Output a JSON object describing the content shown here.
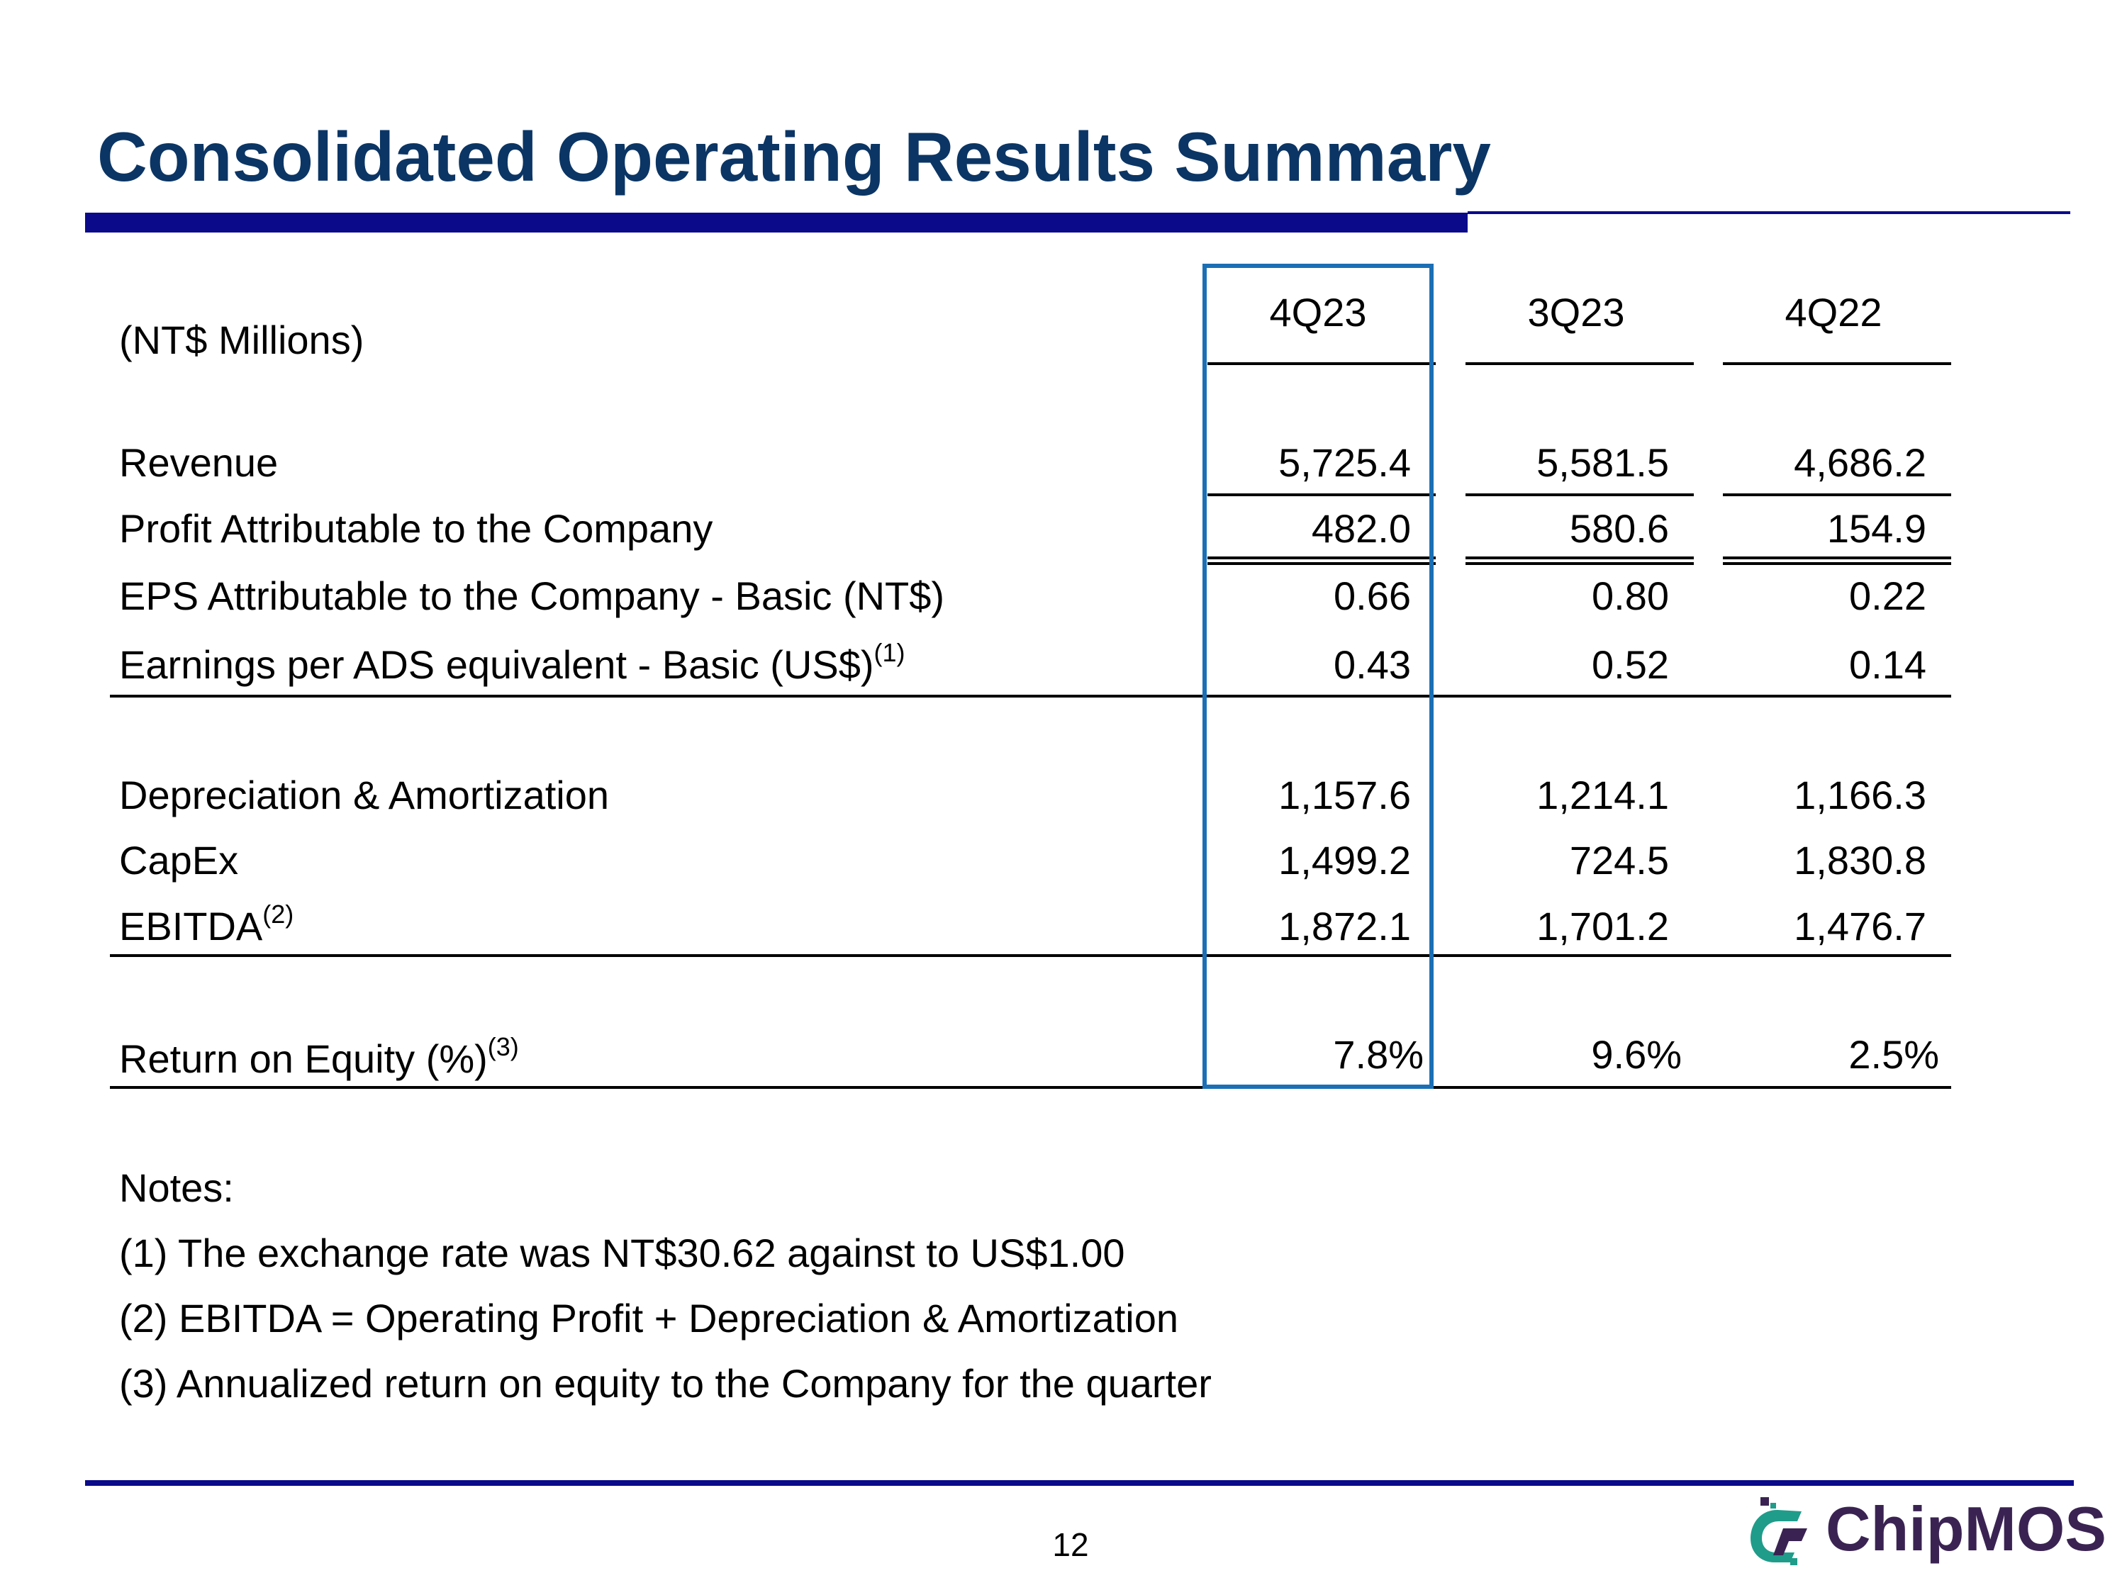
{
  "title": "Consolidated Operating Results Summary",
  "table": {
    "unit_label": "(NT$ Millions)",
    "columns": [
      "4Q23",
      "3Q23",
      "4Q22"
    ],
    "rows": [
      {
        "label": "Revenue",
        "sup": "",
        "values": [
          "5,725.4",
          "5,581.5",
          "4,686.2"
        ]
      },
      {
        "label": "Profit Attributable to the Company",
        "sup": "",
        "values": [
          "482.0",
          "580.6",
          "154.9"
        ]
      },
      {
        "label": "EPS Attributable to the Company - Basic (NT$)",
        "sup": "",
        "values": [
          "0.66",
          "0.80",
          "0.22"
        ]
      },
      {
        "label": "Earnings per ADS equivalent - Basic (US$)",
        "sup": "(1)",
        "values": [
          "0.43",
          "0.52",
          "0.14"
        ]
      },
      {
        "label": "Depreciation & Amortization",
        "sup": "",
        "values": [
          "1,157.6",
          "1,214.1",
          "1,166.3"
        ]
      },
      {
        "label": "CapEx",
        "sup": "",
        "values": [
          "1,499.2",
          "724.5",
          "1,830.8"
        ]
      },
      {
        "label": "EBITDA",
        "sup": "(2)",
        "values": [
          "1,872.1",
          "1,701.2",
          "1,476.7"
        ]
      },
      {
        "label": "Return on Equity (%)",
        "sup": "(3)",
        "values": [
          "7.8%",
          "9.6%",
          "2.5%"
        ]
      }
    ]
  },
  "notes": {
    "heading": "Notes:",
    "items": [
      "(1) The exchange rate was NT$30.62 against to US$1.00",
      "(2) EBITDA = Operating Profit + Depreciation & Amortization",
      "(3) Annualized return on equity to the Company for the quarter"
    ]
  },
  "footer": {
    "page_number": "12",
    "logo_text": "ChipMOS",
    "logo_colors": {
      "teal": "#1f9c8a",
      "purple": "#3a2352"
    }
  }
}
